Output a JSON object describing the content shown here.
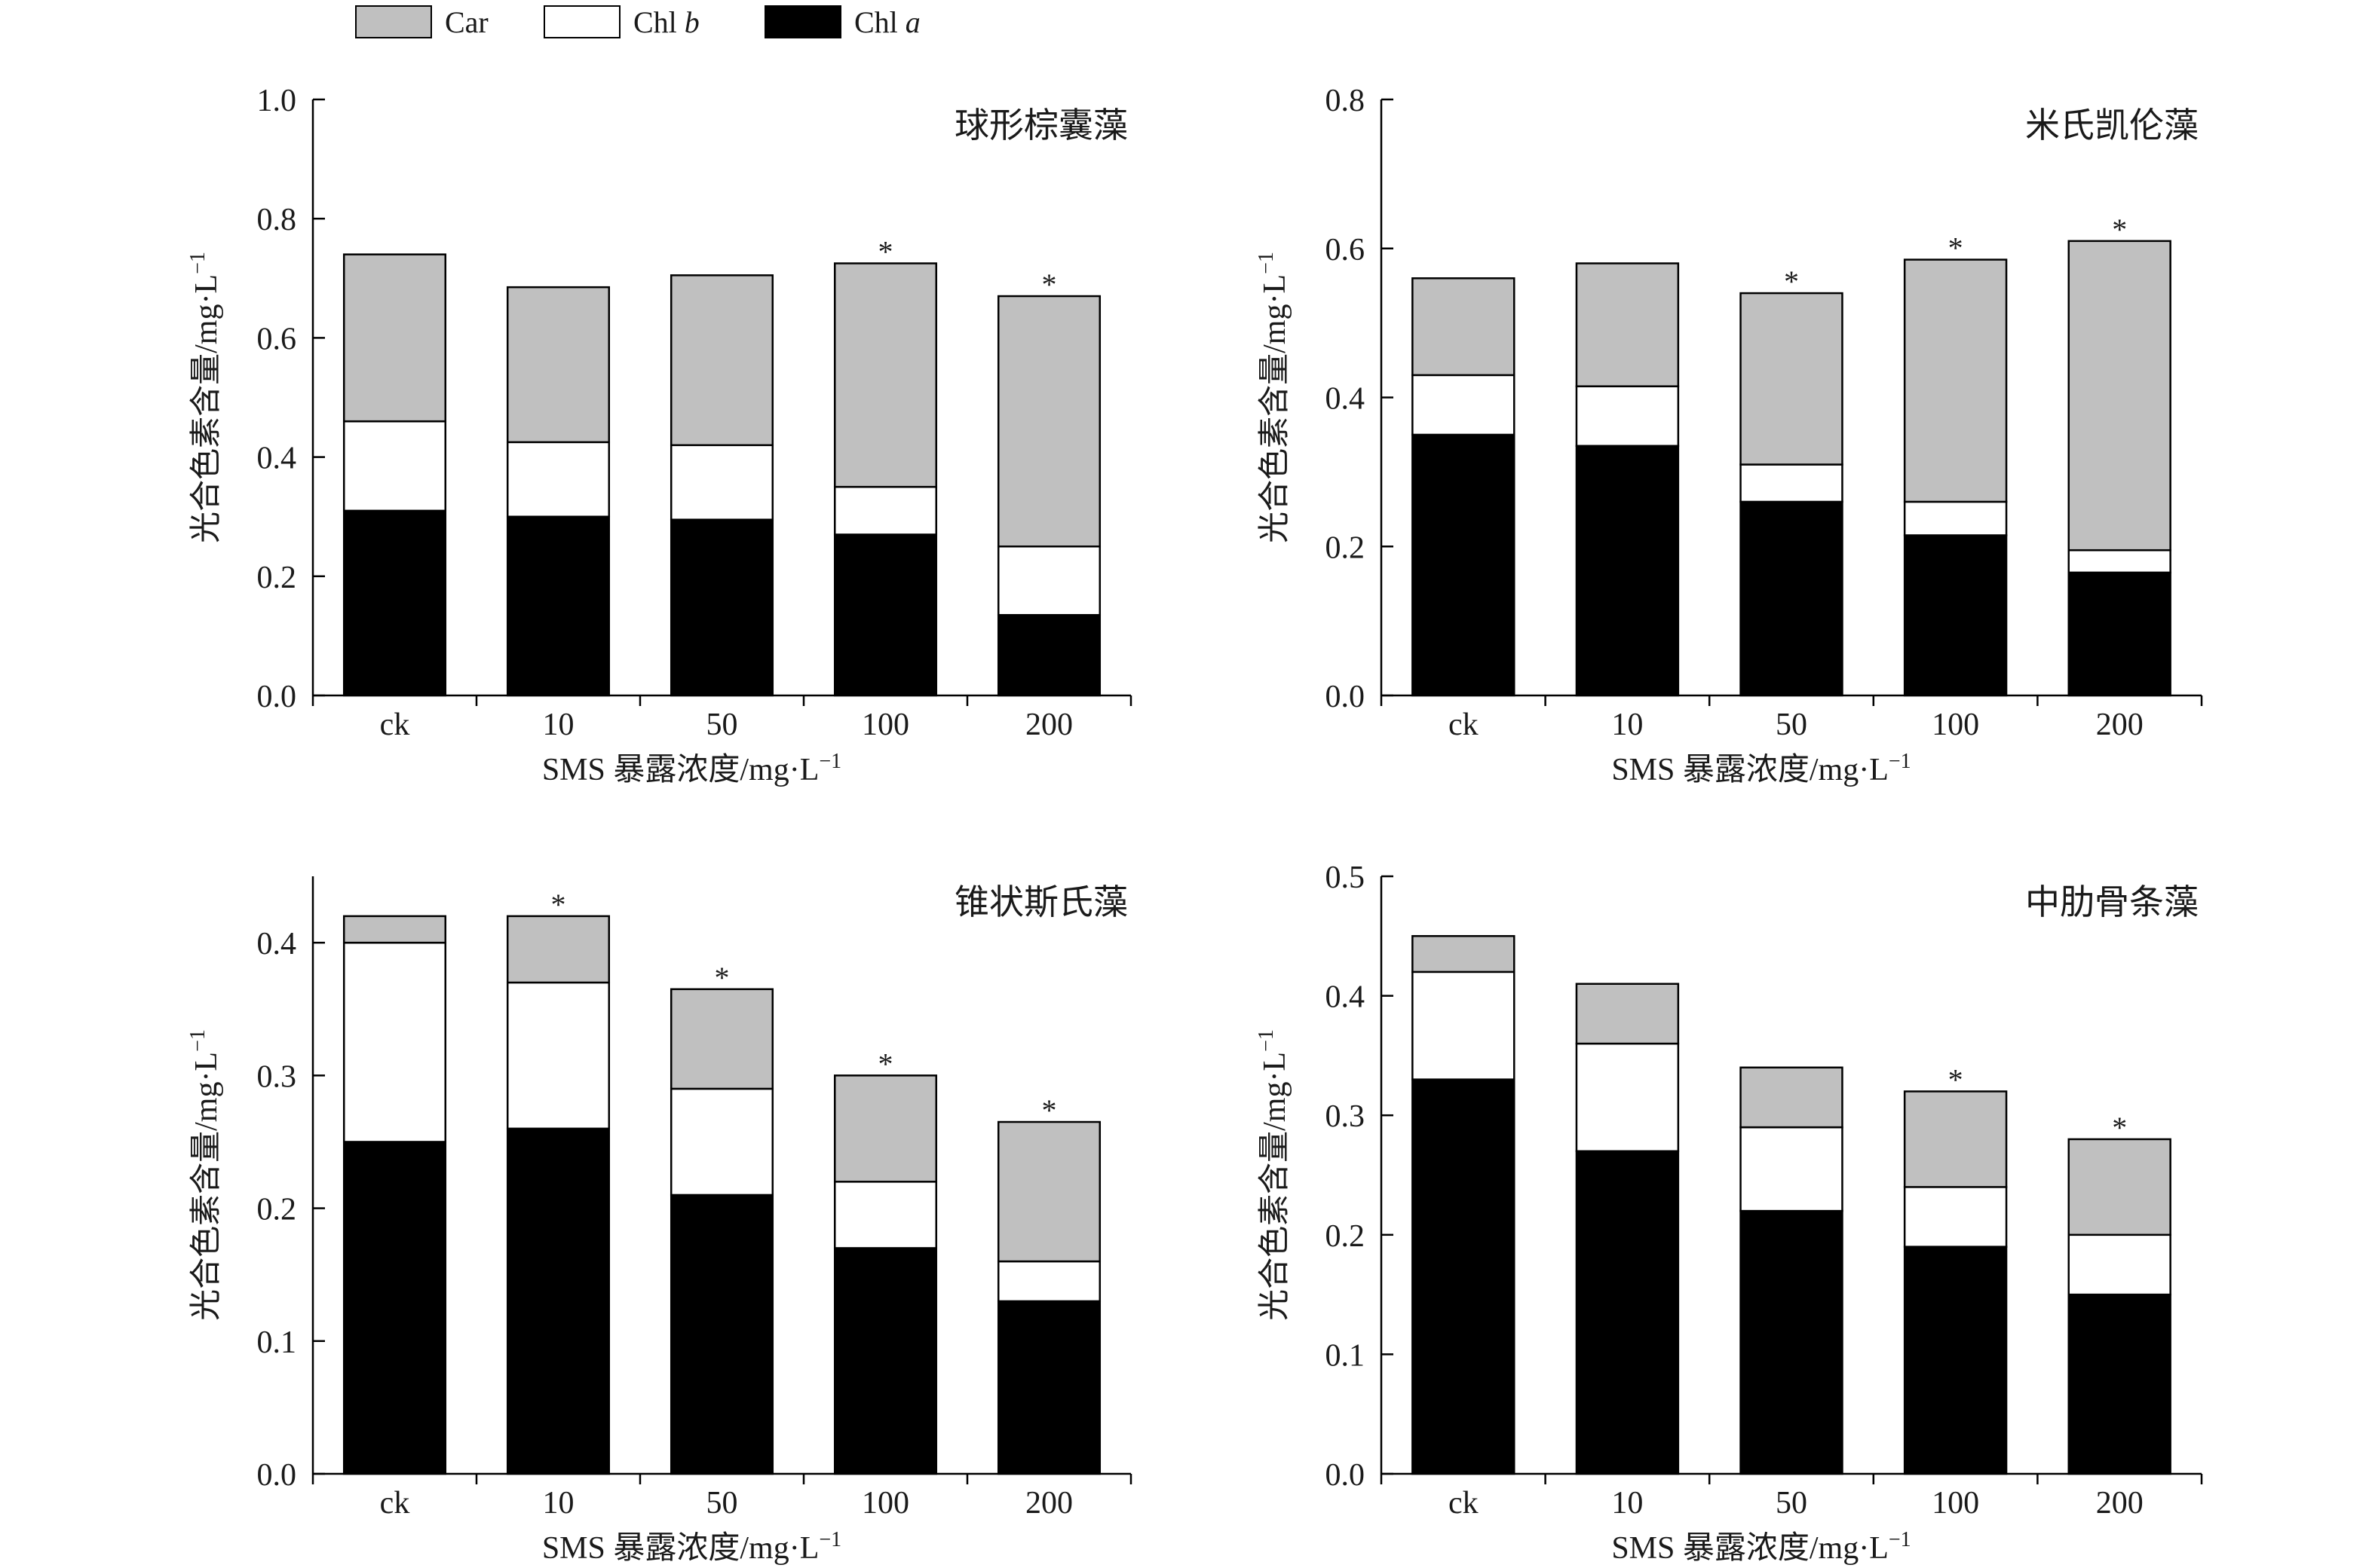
{
  "legend": [
    {
      "label": "Car",
      "italic_part": "",
      "color": "#c0c0c0"
    },
    {
      "label": "Chl ",
      "italic_part": "b",
      "color": "#ffffff"
    },
    {
      "label": "Chl ",
      "italic_part": "a",
      "color": "#000000"
    }
  ],
  "colors": {
    "car": "#c0c0c0",
    "chl_b": "#ffffff",
    "chl_a": "#000000",
    "outline": "#000000"
  },
  "chart_data": [
    {
      "type": "bar",
      "stacked": true,
      "title": "球形棕囊藻",
      "xlabel": "SMS 暴露浓度/mg·L",
      "xlabel_sup": "−1",
      "ylabel": "光合色素含量/mg·L",
      "ylabel_sup": "−1",
      "categories": [
        "ck",
        "10",
        "50",
        "100",
        "200"
      ],
      "ylim": [
        0,
        1.0
      ],
      "yticks": [
        "0.0",
        "0.2",
        "0.4",
        "0.6",
        "0.8",
        "1.0"
      ],
      "series": [
        {
          "name": "Chl a",
          "values": [
            0.31,
            0.3,
            0.295,
            0.27,
            0.135
          ],
          "stars": [
            false,
            false,
            false,
            false,
            true
          ]
        },
        {
          "name": "Chl b",
          "values": [
            0.15,
            0.125,
            0.125,
            0.08,
            0.115
          ],
          "stars": [
            false,
            false,
            false,
            true,
            false
          ]
        },
        {
          "name": "Car",
          "values": [
            0.28,
            0.26,
            0.285,
            0.375,
            0.42
          ],
          "stars": [
            false,
            false,
            false,
            true,
            true
          ]
        }
      ]
    },
    {
      "type": "bar",
      "stacked": true,
      "title": "米氏凯伦藻",
      "xlabel": "SMS 暴露浓度/mg·L",
      "xlabel_sup": "−1",
      "ylabel": "光合色素含量/mg·L",
      "ylabel_sup": "−1",
      "categories": [
        "ck",
        "10",
        "50",
        "100",
        "200"
      ],
      "ylim": [
        0,
        0.8
      ],
      "yticks": [
        "0.0",
        "0.2",
        "0.4",
        "0.6",
        "0.8"
      ],
      "series": [
        {
          "name": "Chl a",
          "values": [
            0.35,
            0.335,
            0.26,
            0.215,
            0.165
          ],
          "stars": [
            false,
            false,
            true,
            true,
            true
          ]
        },
        {
          "name": "Chl b",
          "values": [
            0.08,
            0.08,
            0.05,
            0.045,
            0.03
          ],
          "stars": [
            false,
            false,
            true,
            true,
            true
          ]
        },
        {
          "name": "Car",
          "values": [
            0.13,
            0.165,
            0.23,
            0.325,
            0.415
          ],
          "stars": [
            false,
            false,
            true,
            true,
            true
          ]
        }
      ]
    },
    {
      "type": "bar",
      "stacked": true,
      "title": "锥状斯氏藻",
      "xlabel": "SMS 暴露浓度/mg·L",
      "xlabel_sup": "−1",
      "ylabel": "光合色素含量/mg·L",
      "ylabel_sup": "−1",
      "categories": [
        "ck",
        "10",
        "50",
        "100",
        "200"
      ],
      "ylim": [
        0,
        0.45
      ],
      "yticks": [
        "0.0",
        "0.1",
        "0.2",
        "0.3",
        "0.4"
      ],
      "series": [
        {
          "name": "Chl a",
          "values": [
            0.25,
            0.26,
            0.21,
            0.17,
            0.13
          ],
          "stars": [
            false,
            false,
            false,
            true,
            true
          ]
        },
        {
          "name": "Chl b",
          "values": [
            0.15,
            0.11,
            0.08,
            0.05,
            0.03
          ],
          "stars": [
            false,
            true,
            true,
            true,
            true
          ]
        },
        {
          "name": "Car",
          "values": [
            0.02,
            0.05,
            0.075,
            0.08,
            0.105
          ],
          "stars": [
            false,
            true,
            true,
            true,
            true
          ]
        }
      ]
    },
    {
      "type": "bar",
      "stacked": true,
      "title": "中肋骨条藻",
      "xlabel": "SMS 暴露浓度/mg·L",
      "xlabel_sup": "−1",
      "ylabel": "光合色素含量/mg·L",
      "ylabel_sup": "−1",
      "categories": [
        "ck",
        "10",
        "50",
        "100",
        "200"
      ],
      "ylim": [
        0,
        0.5
      ],
      "yticks": [
        "0.0",
        "0.1",
        "0.2",
        "0.3",
        "0.4",
        "0.5"
      ],
      "series": [
        {
          "name": "Chl a",
          "values": [
            0.33,
            0.27,
            0.22,
            0.19,
            0.15
          ],
          "stars": [
            false,
            false,
            true,
            true,
            true
          ]
        },
        {
          "name": "Chl b",
          "values": [
            0.09,
            0.09,
            0.07,
            0.05,
            0.05
          ],
          "stars": [
            false,
            false,
            false,
            true,
            true
          ]
        },
        {
          "name": "Car",
          "values": [
            0.03,
            0.05,
            0.05,
            0.08,
            0.08
          ],
          "stars": [
            false,
            false,
            false,
            true,
            true
          ]
        }
      ]
    }
  ]
}
